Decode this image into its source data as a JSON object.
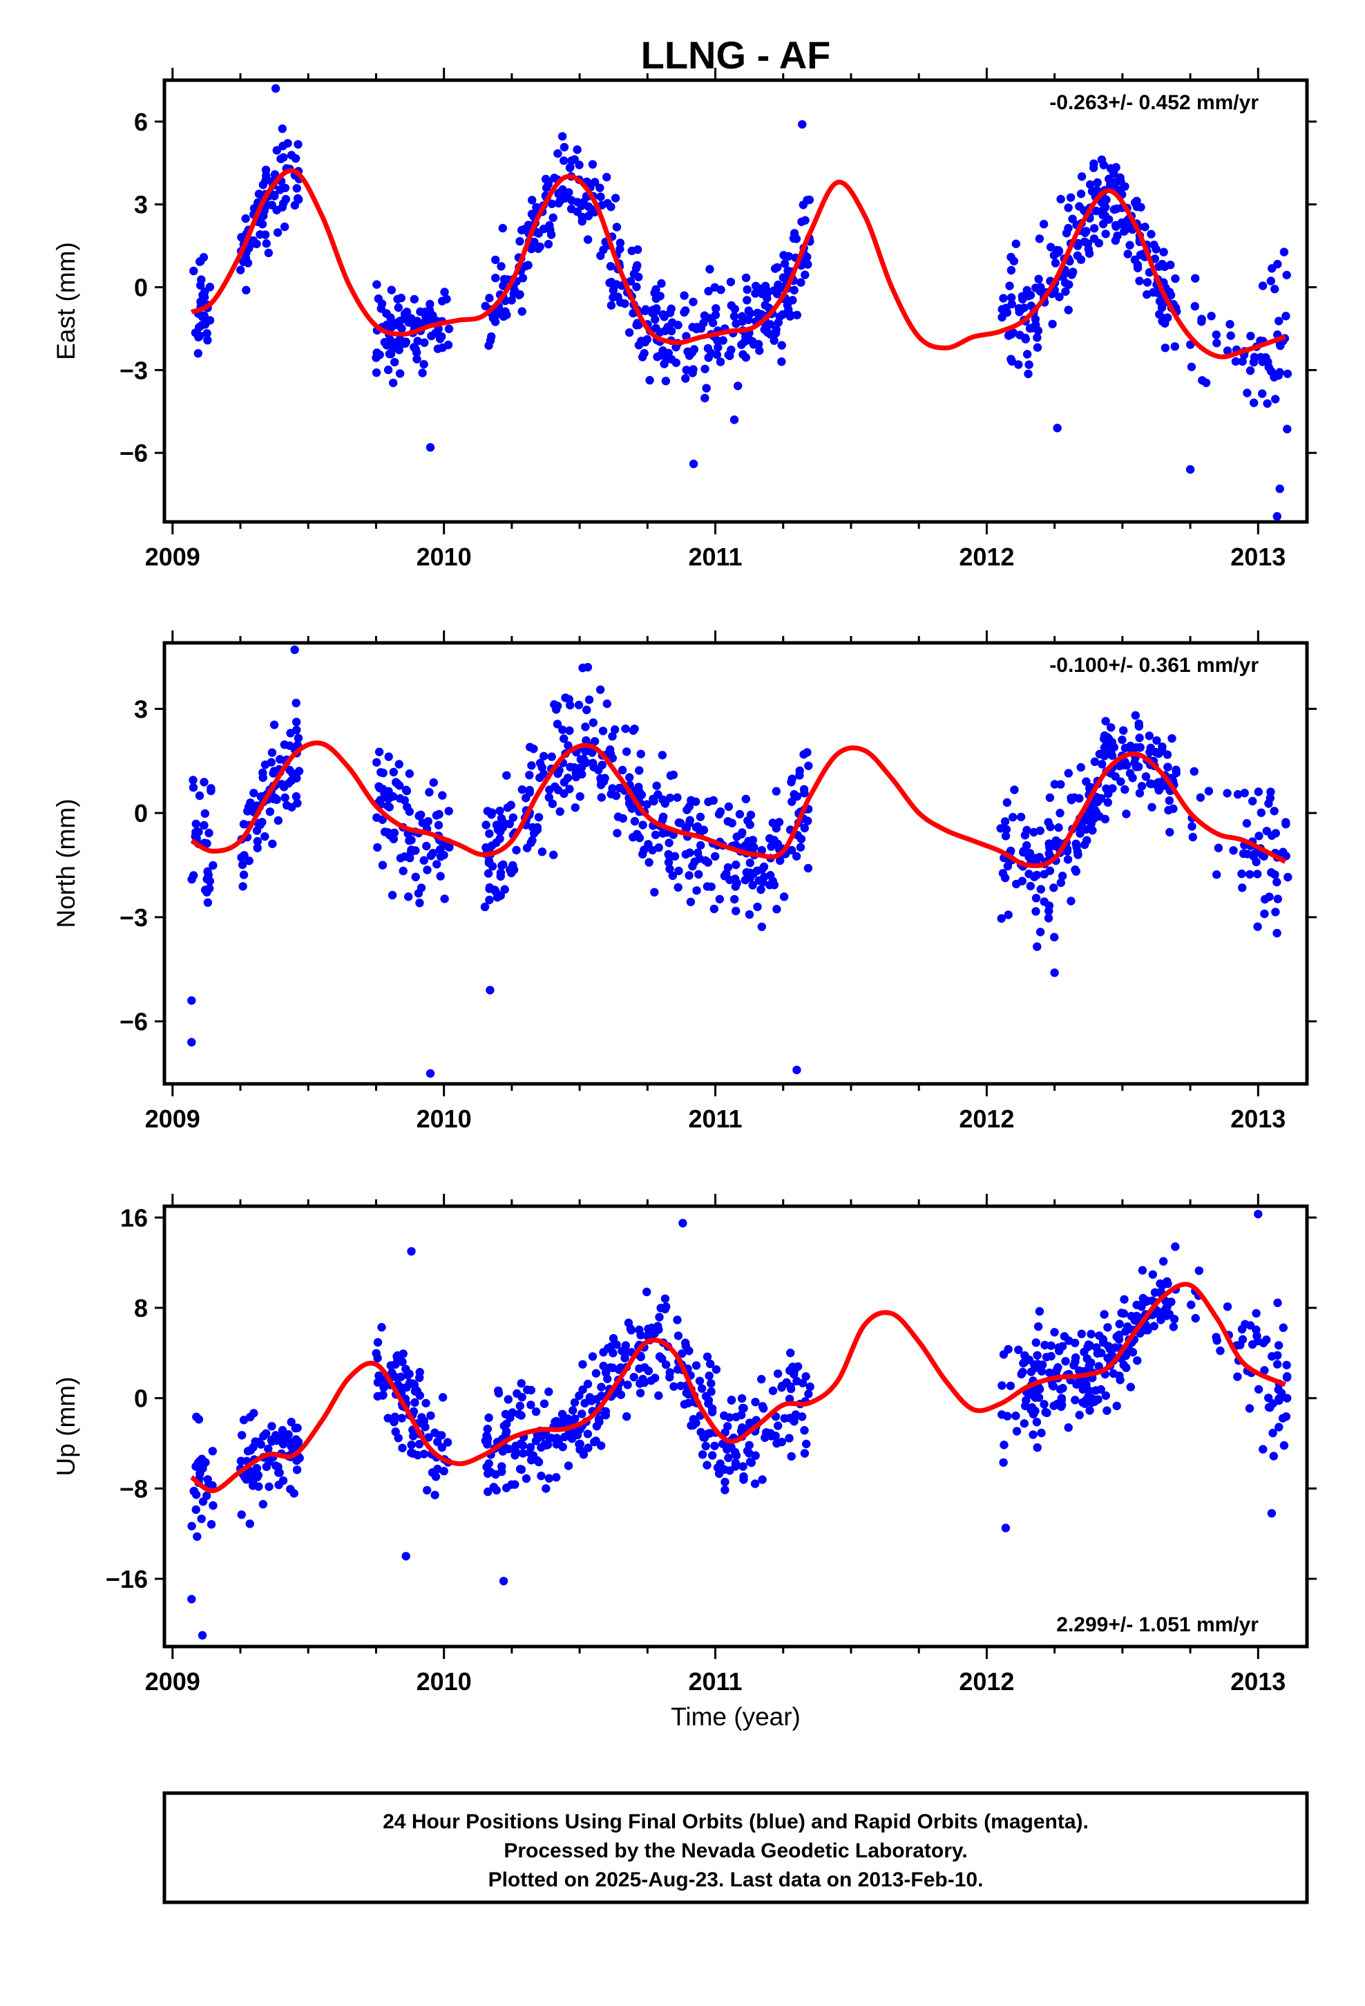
{
  "title": "LLNG - AF",
  "x_axis_label": "Time (year)",
  "footer": {
    "lines": [
      "24 Hour Positions Using Final Orbits (blue) and Rapid Orbits (magenta).",
      "Processed by the Nevada Geodetic Laboratory.",
      "Plotted on 2025-Aug-23. Last data on 2013-Feb-10."
    ]
  },
  "colors": {
    "points": "#0000ff",
    "fit": "#ff0000",
    "frame": "#000000"
  },
  "chart_data": [
    {
      "type": "scatter",
      "name": "east",
      "ylabel": "East (mm)",
      "rate_text": "-0.263+/- 0.452 mm/yr",
      "rate_position": "top-right",
      "xlim": [
        2008.97,
        2013.18
      ],
      "ylim": [
        -8.5,
        7.5
      ],
      "x_ticks": [
        2009,
        2010,
        2011,
        2012,
        2013
      ],
      "x_tick_labels": [
        "2009",
        "2010",
        "2011",
        "2012",
        "2013"
      ],
      "y_ticks": [
        -6,
        -3,
        0,
        3,
        6
      ],
      "y_tick_labels": [
        "−6",
        "−3",
        "0",
        "3",
        "6"
      ],
      "fit_curve": {
        "x": [
          2009.07,
          2009.15,
          2009.25,
          2009.35,
          2009.45,
          2009.55,
          2009.65,
          2009.75,
          2009.85,
          2009.95,
          2010.05,
          2010.15,
          2010.25,
          2010.35,
          2010.45,
          2010.55,
          2010.65,
          2010.75,
          2010.85,
          2010.95,
          2011.05,
          2011.15,
          2011.25,
          2011.35,
          2011.45,
          2011.55,
          2011.65,
          2011.75,
          2011.85,
          2011.95,
          2012.05,
          2012.15,
          2012.25,
          2012.35,
          2012.45,
          2012.55,
          2012.65,
          2012.75,
          2012.85,
          2012.95,
          2013.1
        ],
        "y": [
          -0.9,
          -0.5,
          1.2,
          3.4,
          4.2,
          2.6,
          0.1,
          -1.4,
          -1.7,
          -1.4,
          -1.2,
          -1.0,
          0.2,
          2.6,
          4.0,
          3.2,
          0.6,
          -1.5,
          -2.0,
          -1.8,
          -1.6,
          -1.4,
          -0.3,
          2.0,
          3.8,
          2.6,
          0.0,
          -1.8,
          -2.2,
          -1.8,
          -1.6,
          -1.1,
          0.2,
          2.3,
          3.5,
          2.2,
          -0.2,
          -1.8,
          -2.5,
          -2.3,
          -1.8
        ]
      },
      "points": {
        "seed": 11,
        "segments": [
          {
            "x": [
              2009.07,
              2009.15
            ],
            "n": 28,
            "spread": 1.3
          },
          {
            "x": [
              2009.25,
              2009.47
            ],
            "n": 80,
            "spread": 1.1
          },
          {
            "x": [
              2009.75,
              2010.02
            ],
            "n": 90,
            "spread": 1.0
          },
          {
            "x": [
              2010.15,
              2011.35
            ],
            "n": 380,
            "spread": 1.3
          },
          {
            "x": [
              2012.05,
              2012.33
            ],
            "n": 90,
            "spread": 1.6
          },
          {
            "x": [
              2012.33,
              2012.7
            ],
            "n": 140,
            "spread": 1.2
          },
          {
            "x": [
              2012.75,
              2012.98
            ],
            "n": 22,
            "spread": 1.6
          },
          {
            "x": [
              2012.98,
              2013.11
            ],
            "n": 35,
            "spread": 2.0
          }
        ],
        "outliers": [
          [
            2009.38,
            7.2
          ],
          [
            2009.95,
            -5.8
          ],
          [
            2010.92,
            -6.4
          ],
          [
            2011.07,
            -4.8
          ],
          [
            2012.26,
            -5.1
          ],
          [
            2012.75,
            -6.6
          ],
          [
            2013.07,
            -8.3
          ],
          [
            2013.08,
            -7.3
          ],
          [
            2011.32,
            5.9
          ]
        ]
      }
    },
    {
      "type": "scatter",
      "name": "north",
      "ylabel": "North (mm)",
      "rate_text": "-0.100+/- 0.361 mm/yr",
      "rate_position": "top-right",
      "xlim": [
        2008.97,
        2013.18
      ],
      "ylim": [
        -7.8,
        4.9
      ],
      "x_ticks": [
        2009,
        2010,
        2011,
        2012,
        2013
      ],
      "x_tick_labels": [
        "2009",
        "2010",
        "2011",
        "2012",
        "2013"
      ],
      "y_ticks": [
        -6,
        -3,
        0,
        3
      ],
      "y_tick_labels": [
        "−6",
        "−3",
        "0",
        "3"
      ],
      "fit_curve": {
        "x": [
          2009.07,
          2009.15,
          2009.25,
          2009.35,
          2009.45,
          2009.55,
          2009.65,
          2009.75,
          2009.85,
          2009.95,
          2010.05,
          2010.15,
          2010.25,
          2010.35,
          2010.45,
          2010.55,
          2010.65,
          2010.75,
          2010.85,
          2010.95,
          2011.05,
          2011.15,
          2011.25,
          2011.35,
          2011.45,
          2011.55,
          2011.65,
          2011.75,
          2011.85,
          2011.95,
          2012.05,
          2012.15,
          2012.25,
          2012.35,
          2012.45,
          2012.55,
          2012.65,
          2012.75,
          2012.85,
          2012.95,
          2013.1
        ],
        "y": [
          -0.8,
          -1.1,
          -0.8,
          0.5,
          1.7,
          2.0,
          1.3,
          0.2,
          -0.4,
          -0.6,
          -0.9,
          -1.2,
          -0.8,
          0.6,
          1.7,
          1.9,
          1.0,
          -0.1,
          -0.5,
          -0.7,
          -1.0,
          -1.2,
          -1.1,
          0.5,
          1.7,
          1.8,
          1.0,
          0.0,
          -0.5,
          -0.8,
          -1.1,
          -1.5,
          -1.3,
          0.0,
          1.3,
          1.7,
          1.1,
          0.0,
          -0.6,
          -0.8,
          -1.4
        ]
      },
      "points": {
        "seed": 23,
        "segments": [
          {
            "x": [
              2009.07,
              2009.15
            ],
            "n": 28,
            "spread": 1.4
          },
          {
            "x": [
              2009.25,
              2009.47
            ],
            "n": 80,
            "spread": 1.1
          },
          {
            "x": [
              2009.75,
              2010.02
            ],
            "n": 90,
            "spread": 1.2
          },
          {
            "x": [
              2010.15,
              2011.35
            ],
            "n": 380,
            "spread": 1.2
          },
          {
            "x": [
              2012.05,
              2012.33
            ],
            "n": 90,
            "spread": 1.4
          },
          {
            "x": [
              2012.33,
              2012.7
            ],
            "n": 140,
            "spread": 0.9
          },
          {
            "x": [
              2012.75,
              2012.98
            ],
            "n": 22,
            "spread": 1.0
          },
          {
            "x": [
              2012.98,
              2013.11
            ],
            "n": 35,
            "spread": 1.4
          }
        ],
        "outliers": [
          [
            2009.07,
            -6.6
          ],
          [
            2009.07,
            -5.4
          ],
          [
            2009.45,
            4.7
          ],
          [
            2009.95,
            -7.5
          ],
          [
            2010.17,
            -5.1
          ],
          [
            2011.3,
            -7.4
          ],
          [
            2010.53,
            4.2
          ],
          [
            2012.25,
            -4.6
          ]
        ]
      }
    },
    {
      "type": "scatter",
      "name": "up",
      "ylabel": "Up (mm)",
      "rate_text": "2.299+/- 1.051 mm/yr",
      "rate_position": "bottom-right",
      "xlim": [
        2008.97,
        2013.18
      ],
      "ylim": [
        -22,
        17
      ],
      "x_ticks": [
        2009,
        2010,
        2011,
        2012,
        2013
      ],
      "x_tick_labels": [
        "2009",
        "2010",
        "2011",
        "2012",
        "2013"
      ],
      "y_ticks": [
        -16,
        -8,
        0,
        8,
        16
      ],
      "y_tick_labels": [
        "−16",
        "−8",
        "0",
        "8",
        "16"
      ],
      "fit_curve": {
        "x": [
          2009.07,
          2009.15,
          2009.25,
          2009.35,
          2009.45,
          2009.55,
          2009.65,
          2009.75,
          2009.85,
          2009.95,
          2010.05,
          2010.15,
          2010.25,
          2010.35,
          2010.45,
          2010.55,
          2010.65,
          2010.75,
          2010.85,
          2010.95,
          2011.05,
          2011.15,
          2011.25,
          2011.35,
          2011.45,
          2011.55,
          2011.65,
          2011.75,
          2011.85,
          2011.95,
          2012.05,
          2012.15,
          2012.25,
          2012.35,
          2012.45,
          2012.55,
          2012.65,
          2012.75,
          2012.85,
          2012.95,
          2013.1
        ],
        "y": [
          -7.0,
          -8.2,
          -6.5,
          -5.0,
          -5.0,
          -2.0,
          1.8,
          3.0,
          -0.5,
          -4.5,
          -5.8,
          -5.0,
          -3.5,
          -2.8,
          -2.7,
          -1.5,
          1.8,
          5.0,
          4.0,
          -1.0,
          -3.8,
          -2.5,
          -0.6,
          -0.4,
          1.5,
          6.5,
          7.5,
          5.0,
          1.5,
          -1.0,
          -0.5,
          1.0,
          1.8,
          2.0,
          2.8,
          6.0,
          9.0,
          10.0,
          7.0,
          3.0,
          1.2
        ]
      },
      "points": {
        "seed": 37,
        "segments": [
          {
            "x": [
              2009.07,
              2009.15
            ],
            "n": 28,
            "spread": 3.8
          },
          {
            "x": [
              2009.25,
              2009.47
            ],
            "n": 80,
            "spread": 2.8
          },
          {
            "x": [
              2009.75,
              2010.02
            ],
            "n": 90,
            "spread": 3.5
          },
          {
            "x": [
              2010.15,
              2011.35
            ],
            "n": 380,
            "spread": 3.2
          },
          {
            "x": [
              2012.05,
              2012.33
            ],
            "n": 90,
            "spread": 3.6
          },
          {
            "x": [
              2012.33,
              2012.7
            ],
            "n": 140,
            "spread": 2.6
          },
          {
            "x": [
              2012.75,
              2012.98
            ],
            "n": 22,
            "spread": 2.8
          },
          {
            "x": [
              2012.98,
              2013.11
            ],
            "n": 35,
            "spread": 4.0
          }
        ],
        "outliers": [
          [
            2009.07,
            -17.8
          ],
          [
            2009.11,
            -21.0
          ],
          [
            2009.86,
            -14.0
          ],
          [
            2010.22,
            -16.2
          ],
          [
            2010.88,
            15.5
          ],
          [
            2012.07,
            -11.5
          ],
          [
            2013.0,
            16.3
          ],
          [
            2013.05,
            -10.2
          ],
          [
            2009.88,
            13.0
          ]
        ]
      }
    }
  ]
}
